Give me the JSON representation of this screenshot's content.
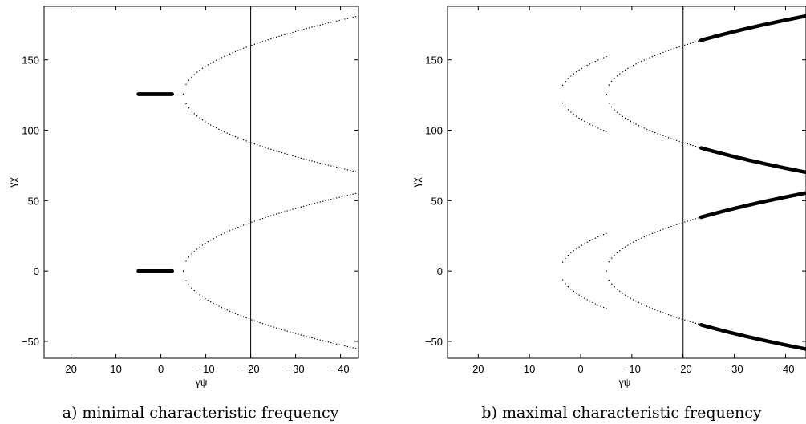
{
  "chart_data": [
    {
      "type": "scatter",
      "caption": "a) minimal characteristic frequency",
      "xlabel": "γψ",
      "ylabel": "γχ",
      "xlim": [
        26,
        -44
      ],
      "ylim": [
        -62,
        188
      ],
      "xticks": [
        20,
        10,
        0,
        -10,
        -20,
        -30,
        -40
      ],
      "xtick_labels": [
        "20",
        "10",
        "0",
        "−10",
        "−20",
        "−30",
        "−40"
      ],
      "yticks": [
        -50,
        0,
        50,
        100,
        150
      ],
      "ytick_labels": [
        "−50",
        "0",
        "50",
        "100",
        "150"
      ],
      "vline_x": -20,
      "thick_curves": [
        {
          "x_from": 5,
          "x_to": -2.5,
          "apex_x": -8,
          "center_y": 0
        },
        {
          "x_from": 5,
          "x_to": -2.5,
          "apex_x": -8,
          "center_y": 125.66
        }
      ],
      "dotted_curves": [
        {
          "x_from": -5,
          "x_to": -44,
          "apex_x": -5,
          "center_y": 0
        },
        {
          "x_from": -5,
          "x_to": -44,
          "apex_x": -5,
          "center_y": 125.66
        }
      ],
      "grid": false
    },
    {
      "type": "scatter",
      "caption": "b) maximal characteristic frequency",
      "xlabel": "γψ",
      "ylabel": "γχ",
      "xlim": [
        26,
        -44
      ],
      "ylim": [
        -62,
        188
      ],
      "xticks": [
        20,
        10,
        0,
        -10,
        -20,
        -30,
        -40
      ],
      "xtick_labels": [
        "20",
        "10",
        "0",
        "−10",
        "−20",
        "−30",
        "−40"
      ],
      "yticks": [
        -50,
        0,
        50,
        100,
        150
      ],
      "ytick_labels": [
        "−50",
        "0",
        "50",
        "100",
        "150"
      ],
      "vline_x": -20,
      "thick_curves": [
        {
          "x_from": -23.5,
          "x_to": -44,
          "apex_x": -5,
          "center_y": 0
        },
        {
          "x_from": -23.5,
          "x_to": -44,
          "apex_x": -5,
          "center_y": 125.66
        }
      ],
      "dotted_curves": [
        {
          "x_from": 3.5,
          "x_to": -5,
          "apex_x": 4,
          "center_y": 0
        },
        {
          "x_from": 3.5,
          "x_to": -5,
          "apex_x": 4,
          "center_y": 125.66
        },
        {
          "x_from": -5,
          "x_to": -23.5,
          "apex_x": -5,
          "center_y": 0
        },
        {
          "x_from": -5,
          "x_to": -23.5,
          "apex_x": -5,
          "center_y": 125.66
        }
      ],
      "grid": false
    }
  ]
}
